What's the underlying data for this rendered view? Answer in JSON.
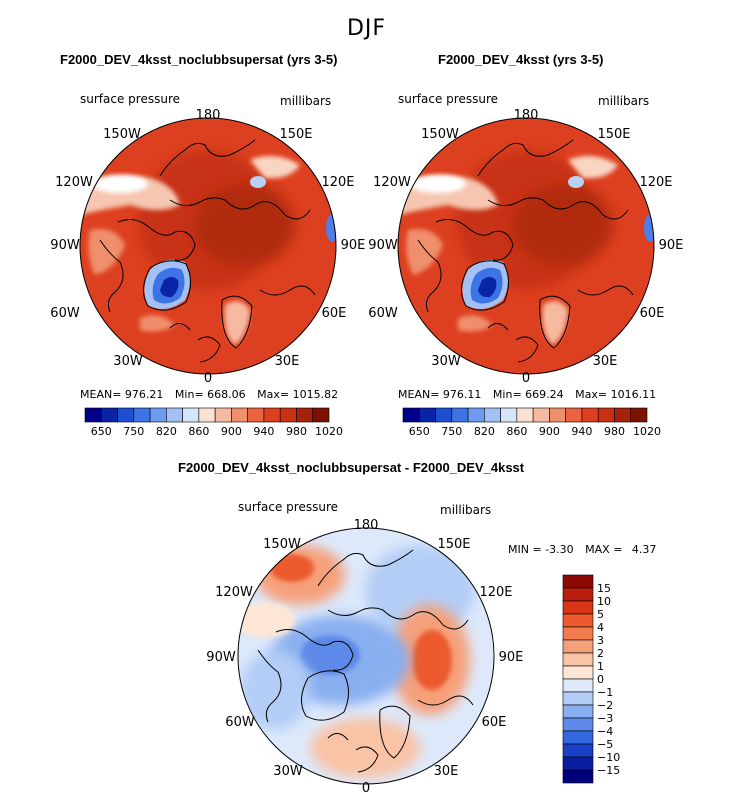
{
  "figure": {
    "title": "DJF"
  },
  "chart_data": [
    {
      "type": "heatmap",
      "projection": "north-polar-stereographic",
      "title": "F2000_DEV_4ksst_noclubbsupersat (yrs 3-5)",
      "variable_label": "surface pressure",
      "units_label": "millibars",
      "longitude_labels": [
        "180",
        "150E",
        "120E",
        "90E",
        "60E",
        "30E",
        "0",
        "30W",
        "60W",
        "90W",
        "120W",
        "150W"
      ],
      "stats": {
        "mean_label": "MEAN=",
        "mean": "976.21",
        "min_label": "Min=",
        "min": "668.06",
        "max_label": "Max=",
        "max": "1015.82"
      },
      "colorbar": {
        "tick_labels": [
          "650",
          "750",
          "820",
          "860",
          "900",
          "940",
          "980",
          "1020"
        ],
        "colors": [
          "#00008b",
          "#0a24a8",
          "#1f4fd1",
          "#3c74e6",
          "#6e9bf0",
          "#a4c1f5",
          "#d5e6fa",
          "#fbe1d2",
          "#f6baa0",
          "#f08f6c",
          "#ea6240",
          "#dd4020",
          "#c83212",
          "#a5230a",
          "#7d1104"
        ]
      },
      "features": {
        "field_max": 1015.82,
        "field_min": 668.06,
        "low_center": "Greenland"
      }
    },
    {
      "type": "heatmap",
      "projection": "north-polar-stereographic",
      "title": "F2000_DEV_4ksst (yrs 3-5)",
      "variable_label": "surface pressure",
      "units_label": "millibars",
      "longitude_labels": [
        "180",
        "150E",
        "120E",
        "90E",
        "60E",
        "30E",
        "0",
        "30W",
        "60W",
        "90W",
        "120W",
        "150W"
      ],
      "stats": {
        "mean_label": "MEAN=",
        "mean": "976.11",
        "min_label": "Min=",
        "min": "669.24",
        "max_label": "Max=",
        "max": "1016.11"
      },
      "colorbar": {
        "tick_labels": [
          "650",
          "750",
          "820",
          "860",
          "900",
          "940",
          "980",
          "1020"
        ],
        "colors": [
          "#00008b",
          "#0a24a8",
          "#1f4fd1",
          "#3c74e6",
          "#6e9bf0",
          "#a4c1f5",
          "#d5e6fa",
          "#fbe1d2",
          "#f6baa0",
          "#f08f6c",
          "#ea6240",
          "#dd4020",
          "#c83212",
          "#a5230a",
          "#7d1104"
        ]
      },
      "features": {
        "field_max": 1016.11,
        "field_min": 669.24,
        "low_center": "Greenland"
      }
    },
    {
      "type": "heatmap",
      "projection": "north-polar-stereographic",
      "title": "F2000_DEV_4ksst_noclubbsupersat - F2000_DEV_4ksst",
      "variable_label": "surface pressure",
      "units_label": "millibars",
      "longitude_labels": [
        "180",
        "150E",
        "120E",
        "90E",
        "60E",
        "30E",
        "0",
        "30W",
        "60W",
        "90W",
        "120W",
        "150W"
      ],
      "stats": {
        "min_label": "MIN =",
        "min": "-3.30",
        "max_label": "MAX =",
        "max": "4.37"
      },
      "colorbar": {
        "orientation": "vertical",
        "tick_labels": [
          "15",
          "10",
          "5",
          "4",
          "3",
          "2",
          "1",
          "0",
          "−1",
          "−2",
          "−3",
          "−4",
          "−5",
          "−10",
          "−15"
        ],
        "colors": [
          "#8b0a05",
          "#b81e0b",
          "#d83416",
          "#ec5a2e",
          "#f27c50",
          "#f6a07a",
          "#f9c3a6",
          "#fde6d6",
          "#dde9fb",
          "#b4cdf6",
          "#8aaff0",
          "#5d8ae8",
          "#3468e0",
          "#1a40c8",
          "#0a1fa0",
          "#00007a"
        ]
      },
      "features": {
        "positive_center": "eastern Siberia (90E)",
        "negative_center": "central Arctic / Canadian Arctic"
      }
    }
  ]
}
